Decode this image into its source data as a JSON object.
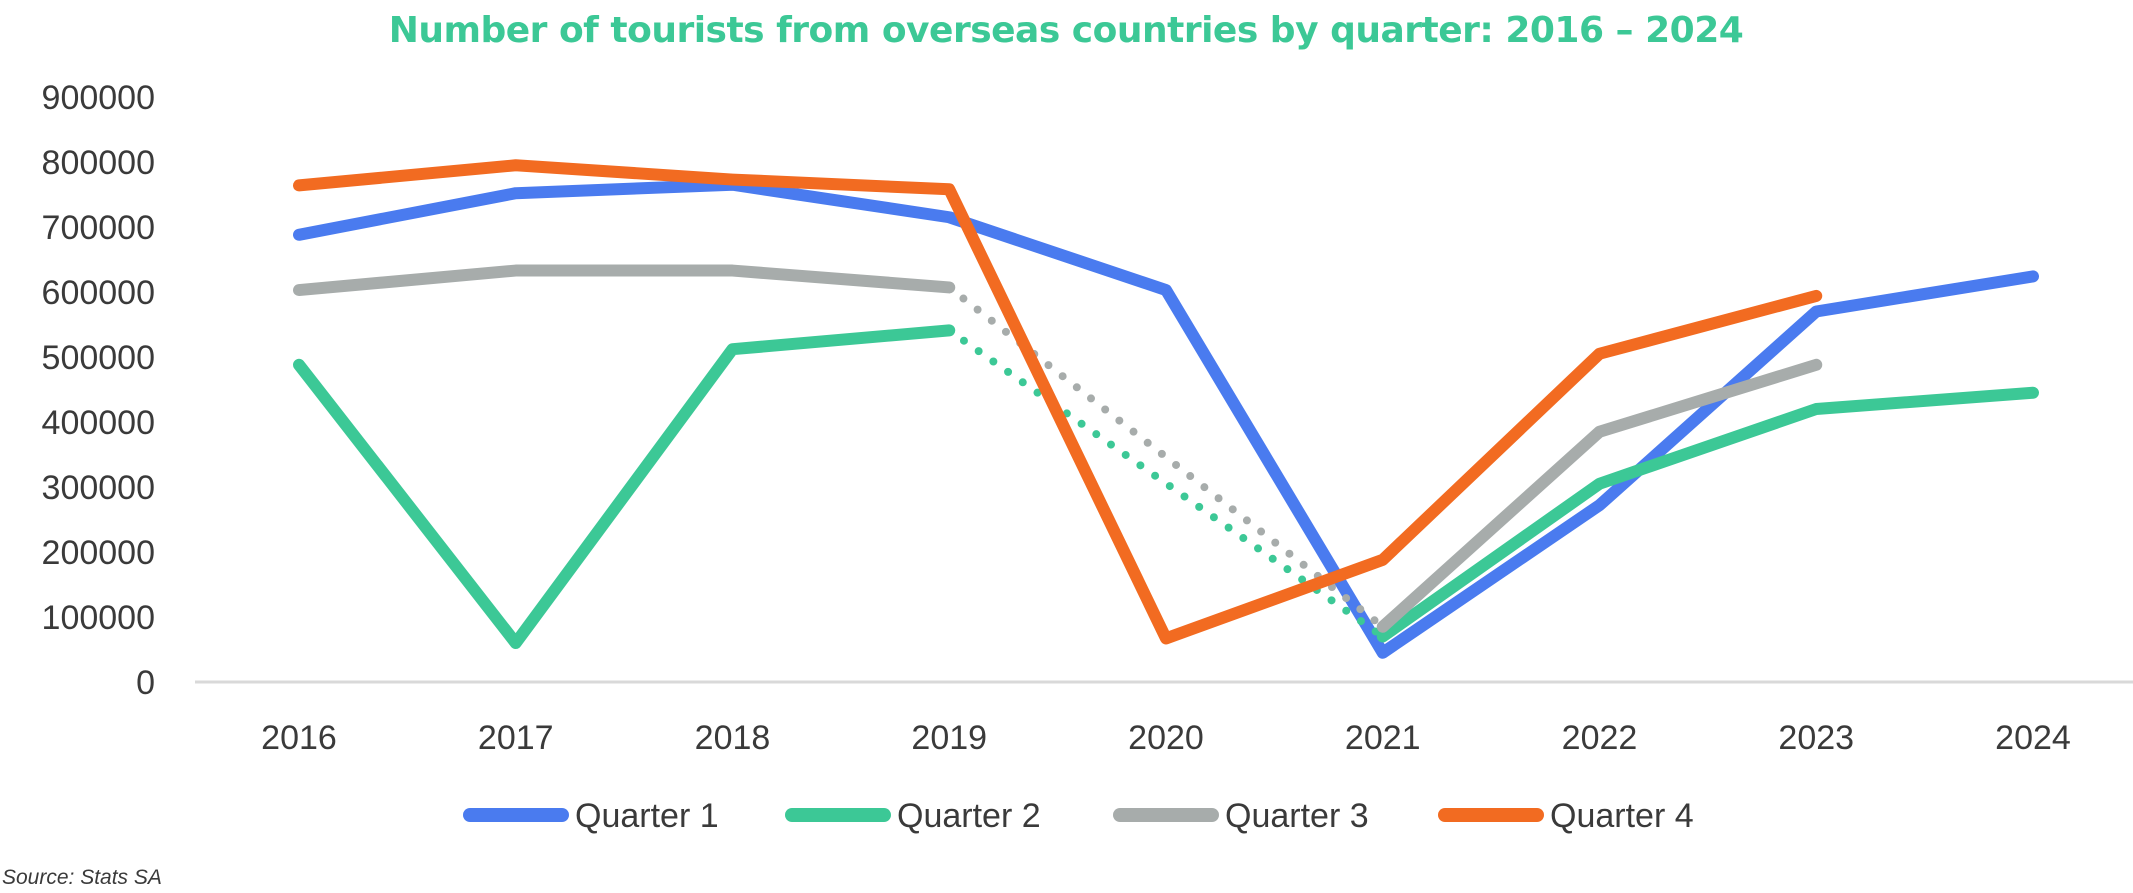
{
  "chart_data": {
    "type": "line",
    "title": "Number of tourists from overseas countries by quarter: 2016 – 2024",
    "xlabel": "",
    "ylabel": "",
    "categories": [
      "2016",
      "2017",
      "2018",
      "2019",
      "2020",
      "2021",
      "2022",
      "2023",
      "2024"
    ],
    "y_ticks": [
      "0",
      "100000",
      "200000",
      "300000",
      "400000",
      "500000",
      "600000",
      "700000",
      "800000",
      "900000"
    ],
    "ylim": [
      0,
      900000
    ],
    "grid": false,
    "legend_position": "bottom",
    "series": [
      {
        "name": "Quarter 1",
        "color": "#4a7bef",
        "values": [
          688000,
          752000,
          765000,
          715000,
          603000,
          45000,
          272000,
          570000,
          624000
        ],
        "dotted_segments": []
      },
      {
        "name": "Quarter 2",
        "color": "#3cc896",
        "values": [
          488000,
          60000,
          512000,
          541000,
          null,
          70000,
          305000,
          420000,
          445000
        ],
        "dotted_segments": [
          [
            3,
            5
          ]
        ]
      },
      {
        "name": "Quarter 3",
        "color": "#a7acab",
        "values": [
          603000,
          633000,
          633000,
          607000,
          null,
          85000,
          385000,
          488000,
          null
        ],
        "dotted_segments": [
          [
            3,
            5
          ]
        ]
      },
      {
        "name": "Quarter 4",
        "color": "#f26b21",
        "values": [
          764000,
          795000,
          773000,
          758000,
          67000,
          188000,
          505000,
          594000,
          null
        ],
        "dotted_segments": []
      }
    ]
  },
  "source_note": "Source: Stats SA"
}
